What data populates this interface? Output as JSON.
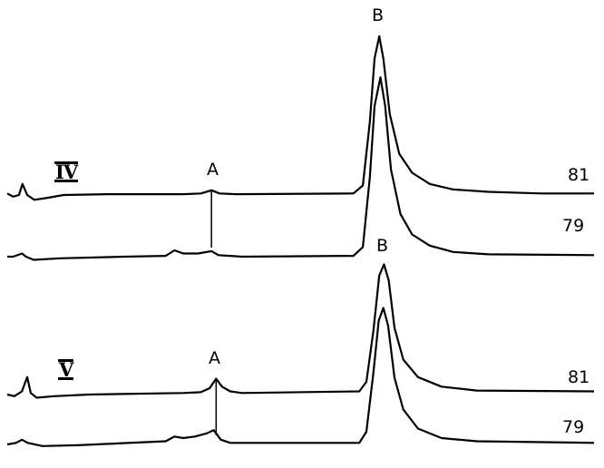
{
  "chart_data": {
    "type": "line",
    "title": "",
    "xlabel": "",
    "ylabel": "",
    "grid": false,
    "legend": "none",
    "line_color": "#000000",
    "panels": [
      {
        "label": "IV",
        "peak_labels": [
          "A",
          "B"
        ],
        "series": [
          {
            "name": "81",
            "points": [
              [
                0,
                1
              ],
              [
                1,
                -1
              ],
              [
                2,
                0
              ],
              [
                2.6,
                7
              ],
              [
                3.4,
                0
              ],
              [
                4.6,
                -3
              ],
              [
                6.5,
                -2
              ],
              [
                9.6,
                0
              ],
              [
                17,
                0.5
              ],
              [
                30,
                0.5
              ],
              [
                33,
                1
              ],
              [
                34.8,
                3
              ],
              [
                36.2,
                1
              ],
              [
                39,
                0.5
              ],
              [
                59,
                1
              ],
              [
                60.6,
                6
              ],
              [
                61.8,
                46
              ],
              [
                62.6,
                86
              ],
              [
                63.4,
                100
              ],
              [
                64.1,
                86
              ],
              [
                65.2,
                51
              ],
              [
                66.8,
                26
              ],
              [
                69,
                14
              ],
              [
                72,
                7
              ],
              [
                76,
                3.5
              ],
              [
                82,
                2
              ],
              [
                91,
                1
              ],
              [
                100,
                1
              ]
            ]
          },
          {
            "name": "79",
            "points": [
              [
                0,
                0
              ],
              [
                1,
                0
              ],
              [
                2.5,
                2
              ],
              [
                3.2,
                0
              ],
              [
                4.5,
                -2
              ],
              [
                9,
                -1
              ],
              [
                20,
                0
              ],
              [
                27,
                0.5
              ],
              [
                28.5,
                4
              ],
              [
                30,
                2
              ],
              [
                32.5,
                2
              ],
              [
                34.8,
                3.5
              ],
              [
                36,
                1
              ],
              [
                40,
                0
              ],
              [
                59,
                0.5
              ],
              [
                60.6,
                6
              ],
              [
                61.8,
                50
              ],
              [
                62.6,
                95
              ],
              [
                63.6,
                113
              ],
              [
                64.4,
                95
              ],
              [
                65.4,
                55
              ],
              [
                67,
                27
              ],
              [
                69,
                14
              ],
              [
                72,
                7
              ],
              [
                76,
                3
              ],
              [
                82,
                1.5
              ],
              [
                100,
                1
              ]
            ]
          }
        ]
      },
      {
        "label": "V",
        "peak_labels": [
          "A",
          "B"
        ],
        "series": [
          {
            "name": "81",
            "points": [
              [
                0,
                0
              ],
              [
                1.2,
                -1
              ],
              [
                2.5,
                2
              ],
              [
                3.4,
                11
              ],
              [
                4,
                1
              ],
              [
                5,
                -2
              ],
              [
                8,
                -1
              ],
              [
                14,
                0
              ],
              [
                30,
                1
              ],
              [
                33,
                1.5
              ],
              [
                34.5,
                4
              ],
              [
                35.6,
                10
              ],
              [
                36.6,
                5
              ],
              [
                38,
                2
              ],
              [
                40,
                1
              ],
              [
                60,
                2
              ],
              [
                61.2,
                8
              ],
              [
                62.4,
                40
              ],
              [
                63.4,
                75
              ],
              [
                64.2,
                82
              ],
              [
                65,
                72
              ],
              [
                66,
                42
              ],
              [
                67.5,
                22
              ],
              [
                70,
                11
              ],
              [
                74,
                5
              ],
              [
                80,
                2.5
              ],
              [
                100,
                2
              ]
            ]
          },
          {
            "name": "79",
            "points": [
              [
                0,
                0
              ],
              [
                1.5,
                1
              ],
              [
                2.5,
                3
              ],
              [
                3.5,
                1
              ],
              [
                6,
                -1
              ],
              [
                12,
                -0.5
              ],
              [
                27,
                2
              ],
              [
                28.5,
                5
              ],
              [
                30,
                4
              ],
              [
                32,
                5
              ],
              [
                34,
                7
              ],
              [
                35.2,
                9
              ],
              [
                36.4,
                3
              ],
              [
                38,
                1
              ],
              [
                60,
                1
              ],
              [
                61.2,
                8
              ],
              [
                62.4,
                45
              ],
              [
                63.3,
                78
              ],
              [
                64.1,
                86
              ],
              [
                64.9,
                75
              ],
              [
                66,
                42
              ],
              [
                67.5,
                22
              ],
              [
                70,
                10
              ],
              [
                74,
                4
              ],
              [
                80,
                2
              ],
              [
                100,
                1
              ]
            ]
          }
        ]
      }
    ]
  }
}
